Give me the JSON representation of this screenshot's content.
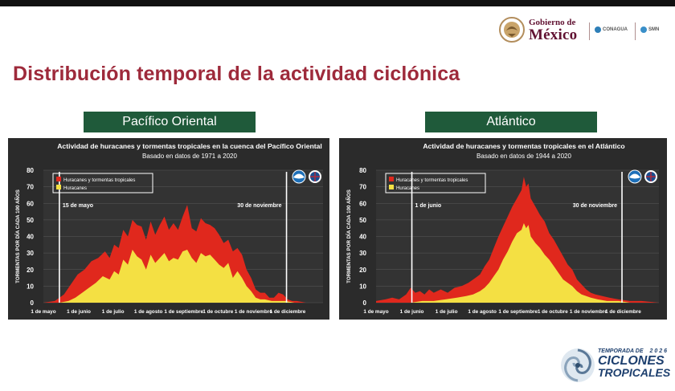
{
  "header": {
    "gov_line1": "Gobierno de",
    "gov_line2": "México",
    "partner1": "CONAGUA",
    "partner2": "SMN"
  },
  "page_title": "Distribución temporal de la actividad ciclónica",
  "region_labels": [
    "Pacífico Oriental",
    "Atlántico"
  ],
  "colors": {
    "brand": "#9e2a3b",
    "gov_brand": "#611232",
    "label_bg": "#1f5a3a",
    "panel_bg": "#2b2b2b",
    "storms": "#e0281d",
    "hurricanes": "#f4e043"
  },
  "chart_data": [
    {
      "type": "area",
      "title": "Actividad de huracanes y tormentas tropicales en la cuenca del Pacífico Oriental",
      "subtitle": "Basado en datos de 1971 a 2020",
      "ylabel": "TORMENTAS POR DÍA CADA 100 AÑOS",
      "ylim": [
        0,
        80
      ],
      "yticks": [
        0,
        10,
        20,
        30,
        40,
        50,
        60,
        70,
        80
      ],
      "xlim": [
        0,
        245
      ],
      "x_ticks": [
        {
          "label": "1 de mayo",
          "x": 0
        },
        {
          "label": "1 de junio",
          "x": 31
        },
        {
          "label": "1 de julio",
          "x": 61
        },
        {
          "label": "1 de agosto",
          "x": 92
        },
        {
          "label": "1 de septiembre",
          "x": 123
        },
        {
          "label": "1 de octubre",
          "x": 153
        },
        {
          "label": "1 de noviembre",
          "x": 184
        },
        {
          "label": "1 de diciembre",
          "x": 214
        }
      ],
      "markers": [
        {
          "label": "15 de mayo",
          "x": 14
        },
        {
          "label": "30 de noviembre",
          "x": 213
        }
      ],
      "legend": [
        "Huracanes y tormentas tropicales",
        "Huracanes"
      ],
      "legend_position": "top-left",
      "series": [
        {
          "name": "Huracanes y tormentas tropicales",
          "x": [
            0,
            10,
            18,
            24,
            30,
            36,
            42,
            48,
            54,
            58,
            62,
            66,
            70,
            74,
            78,
            82,
            86,
            90,
            94,
            98,
            102,
            106,
            110,
            114,
            118,
            122,
            126,
            130,
            134,
            138,
            142,
            146,
            150,
            154,
            158,
            162,
            166,
            170,
            174,
            178,
            182,
            186,
            190,
            194,
            198,
            202,
            206,
            210,
            214,
            218,
            222,
            230,
            238,
            245
          ],
          "values": [
            0,
            1,
            5,
            11,
            17,
            20,
            25,
            27,
            31,
            27,
            35,
            33,
            44,
            40,
            50,
            47,
            46,
            38,
            49,
            41,
            47,
            52,
            44,
            48,
            44,
            52,
            59,
            45,
            43,
            51,
            48,
            47,
            45,
            41,
            36,
            38,
            31,
            33,
            29,
            20,
            15,
            8,
            6,
            6,
            3,
            3,
            6,
            5,
            2,
            1,
            1,
            0,
            0,
            0
          ]
        },
        {
          "name": "Huracanes",
          "x": [
            0,
            14,
            22,
            28,
            34,
            40,
            46,
            52,
            58,
            62,
            66,
            70,
            74,
            78,
            82,
            86,
            90,
            94,
            98,
            102,
            106,
            110,
            114,
            118,
            122,
            126,
            130,
            134,
            138,
            142,
            146,
            150,
            154,
            158,
            162,
            166,
            170,
            174,
            178,
            182,
            186,
            190,
            194,
            200,
            206,
            212,
            220,
            230,
            245
          ],
          "values": [
            0,
            0,
            1,
            3,
            6,
            9,
            12,
            16,
            14,
            19,
            17,
            26,
            23,
            32,
            28,
            26,
            20,
            29,
            24,
            27,
            30,
            25,
            27,
            26,
            31,
            32,
            27,
            24,
            30,
            28,
            29,
            26,
            23,
            21,
            24,
            15,
            19,
            15,
            10,
            7,
            3,
            2,
            2,
            1,
            1,
            1,
            0,
            0,
            0
          ]
        }
      ]
    },
    {
      "type": "area",
      "title": "Actividad de huracanes y tormentas tropicales en el Atlántico",
      "subtitle": "Basado en datos de 1944 a 2020",
      "ylabel": "TORMENTAS POR DÍA CADA 100 AÑOS",
      "ylim": [
        0,
        80
      ],
      "yticks": [
        0,
        10,
        20,
        30,
        40,
        50,
        60,
        70,
        80
      ],
      "xlim": [
        0,
        245
      ],
      "x_ticks": [
        {
          "label": "1 de mayo",
          "x": 0
        },
        {
          "label": "1 de junio",
          "x": 31
        },
        {
          "label": "1 de julio",
          "x": 61
        },
        {
          "label": "1 de agosto",
          "x": 92
        },
        {
          "label": "1 de septiembre",
          "x": 123
        },
        {
          "label": "1 de octubre",
          "x": 153
        },
        {
          "label": "1 de noviembre",
          "x": 184
        },
        {
          "label": "1 de diciembre",
          "x": 214
        }
      ],
      "markers": [
        {
          "label": "1 de junio",
          "x": 31
        },
        {
          "label": "30 de noviembre",
          "x": 213
        }
      ],
      "legend": [
        "Huracanes y tormentas tropicales",
        "Huracanes"
      ],
      "legend_position": "top-left",
      "series": [
        {
          "name": "Huracanes y tormentas tropicales",
          "x": [
            0,
            8,
            14,
            20,
            26,
            30,
            34,
            38,
            42,
            46,
            50,
            56,
            62,
            68,
            74,
            80,
            86,
            90,
            94,
            98,
            102,
            106,
            110,
            114,
            118,
            122,
            126,
            128,
            130,
            132,
            134,
            138,
            142,
            146,
            150,
            154,
            158,
            162,
            166,
            170,
            174,
            178,
            182,
            186,
            190,
            196,
            202,
            210,
            220,
            230,
            245
          ],
          "values": [
            1,
            2,
            3,
            2,
            5,
            9,
            6,
            7,
            5,
            8,
            6,
            8,
            6,
            9,
            10,
            12,
            15,
            17,
            22,
            26,
            33,
            40,
            46,
            52,
            58,
            63,
            68,
            76,
            70,
            72,
            63,
            58,
            53,
            49,
            42,
            38,
            33,
            28,
            23,
            20,
            14,
            11,
            8,
            6,
            5,
            4,
            3,
            2,
            1,
            1,
            0
          ]
        },
        {
          "name": "Huracanes",
          "x": [
            0,
            30,
            40,
            50,
            60,
            70,
            78,
            84,
            90,
            94,
            98,
            102,
            106,
            110,
            114,
            118,
            122,
            126,
            128,
            130,
            132,
            134,
            138,
            142,
            146,
            150,
            154,
            158,
            162,
            166,
            170,
            174,
            178,
            182,
            186,
            192,
            200,
            210,
            220,
            245
          ],
          "values": [
            0,
            0,
            1,
            1,
            2,
            3,
            4,
            5,
            7,
            9,
            12,
            16,
            20,
            26,
            31,
            37,
            42,
            44,
            48,
            45,
            47,
            40,
            36,
            33,
            29,
            26,
            22,
            18,
            14,
            12,
            10,
            7,
            5,
            4,
            3,
            2,
            1,
            1,
            0,
            0
          ]
        }
      ]
    }
  ],
  "season_logo": {
    "top_line": "TEMPORADA DE",
    "year": "2026",
    "line1": "CICLONES",
    "line2": "TROPICALES"
  }
}
